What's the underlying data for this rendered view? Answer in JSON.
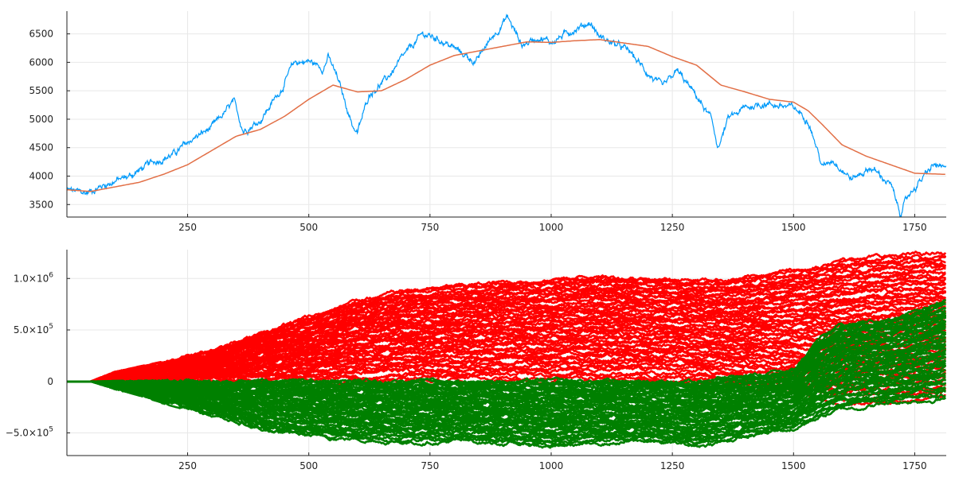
{
  "chart_data": [
    {
      "type": "line",
      "title": "",
      "xlabel": "",
      "ylabel": "",
      "grid": true,
      "legend": "none",
      "xlim": [
        1,
        1815
      ],
      "ylim": [
        3280,
        6900
      ],
      "x_ticks": [
        250,
        500,
        750,
        1000,
        1250,
        1500,
        1750
      ],
      "y_ticks": [
        3500,
        4000,
        4500,
        5000,
        5500,
        6000,
        6500
      ],
      "series": [
        {
          "color": "#009afa",
          "style": "noisy-price",
          "points": [
            [
              1,
              3760
            ],
            [
              40,
              3700
            ],
            [
              80,
              3850
            ],
            [
              130,
              4000
            ],
            [
              180,
              4250
            ],
            [
              220,
              4380
            ],
            [
              260,
              4650
            ],
            [
              300,
              4850
            ],
            [
              345,
              5300
            ],
            [
              365,
              4800
            ],
            [
              400,
              4980
            ],
            [
              445,
              5550
            ],
            [
              470,
              6000
            ],
            [
              500,
              6020
            ],
            [
              530,
              5900
            ],
            [
              540,
              6100
            ],
            [
              560,
              5700
            ],
            [
              590,
              4900
            ],
            [
              600,
              4750
            ],
            [
              625,
              5450
            ],
            [
              660,
              5700
            ],
            [
              700,
              6150
            ],
            [
              735,
              6500
            ],
            [
              770,
              6400
            ],
            [
              800,
              6250
            ],
            [
              845,
              6000
            ],
            [
              870,
              6350
            ],
            [
              910,
              6800
            ],
            [
              940,
              6300
            ],
            [
              975,
              6450
            ],
            [
              1000,
              6350
            ],
            [
              1040,
              6550
            ],
            [
              1080,
              6700
            ],
            [
              1100,
              6450
            ],
            [
              1160,
              6200
            ],
            [
              1200,
              5800
            ],
            [
              1230,
              5550
            ],
            [
              1260,
              5850
            ],
            [
              1300,
              5400
            ],
            [
              1330,
              5000
            ],
            [
              1345,
              4500
            ],
            [
              1365,
              5000
            ],
            [
              1400,
              5200
            ],
            [
              1440,
              5280
            ],
            [
              1500,
              5200
            ],
            [
              1530,
              5000
            ],
            [
              1560,
              4150
            ],
            [
              1580,
              4300
            ],
            [
              1620,
              3950
            ],
            [
              1660,
              4150
            ],
            [
              1700,
              3850
            ],
            [
              1720,
              3350
            ],
            [
              1740,
              3700
            ],
            [
              1775,
              4050
            ],
            [
              1790,
              4200
            ],
            [
              1815,
              4100
            ]
          ]
        },
        {
          "color": "#e26f46",
          "style": "moving-average",
          "points": [
            [
              1,
              3760
            ],
            [
              50,
              3730
            ],
            [
              100,
              3810
            ],
            [
              150,
              3890
            ],
            [
              200,
              4030
            ],
            [
              250,
              4200
            ],
            [
              300,
              4450
            ],
            [
              350,
              4700
            ],
            [
              400,
              4820
            ],
            [
              450,
              5050
            ],
            [
              500,
              5350
            ],
            [
              550,
              5600
            ],
            [
              600,
              5480
            ],
            [
              650,
              5500
            ],
            [
              700,
              5700
            ],
            [
              750,
              5950
            ],
            [
              800,
              6120
            ],
            [
              850,
              6200
            ],
            [
              900,
              6280
            ],
            [
              950,
              6360
            ],
            [
              1000,
              6350
            ],
            [
              1050,
              6380
            ],
            [
              1100,
              6400
            ],
            [
              1150,
              6340
            ],
            [
              1200,
              6280
            ],
            [
              1250,
              6100
            ],
            [
              1300,
              5950
            ],
            [
              1350,
              5600
            ],
            [
              1400,
              5480
            ],
            [
              1450,
              5350
            ],
            [
              1500,
              5300
            ],
            [
              1530,
              5150
            ],
            [
              1560,
              4900
            ],
            [
              1600,
              4550
            ],
            [
              1650,
              4350
            ],
            [
              1700,
              4200
            ],
            [
              1750,
              4050
            ],
            [
              1815,
              4030
            ]
          ]
        }
      ]
    },
    {
      "type": "line",
      "title": "",
      "xlabel": "",
      "ylabel": "",
      "grid": true,
      "legend": "none",
      "xlim": [
        1,
        1815
      ],
      "ylim": [
        -720000,
        1280000
      ],
      "x_ticks": [
        250,
        500,
        750,
        1000,
        1250,
        1500,
        1750
      ],
      "y_ticks": [
        {
          "value": -500000,
          "mantissa": "−5.0×10",
          "exp": "5"
        },
        {
          "value": 0,
          "mantissa": "0",
          "exp": ""
        },
        {
          "value": 500000,
          "mantissa": "5.0×10",
          "exp": "5"
        },
        {
          "value": 1000000,
          "mantissa": "1.0×10",
          "exp": "6"
        }
      ],
      "ensembles": [
        {
          "name": "positive",
          "color": "#ff0000",
          "start_x": 50,
          "envelope_upper": [
            [
              50,
              0
            ],
            [
              100,
              90000
            ],
            [
              200,
              180000
            ],
            [
              300,
              300000
            ],
            [
              400,
              470000
            ],
            [
              500,
              620000
            ],
            [
              600,
              780000
            ],
            [
              700,
              880000
            ],
            [
              800,
              920000
            ],
            [
              900,
              960000
            ],
            [
              1000,
              990000
            ],
            [
              1100,
              1020000
            ],
            [
              1200,
              1000000
            ],
            [
              1300,
              990000
            ],
            [
              1400,
              1000000
            ],
            [
              1500,
              1080000
            ],
            [
              1550,
              1120000
            ],
            [
              1600,
              1180000
            ],
            [
              1700,
              1220000
            ],
            [
              1815,
              1240000
            ]
          ],
          "envelope_lower": [
            [
              50,
              0
            ],
            [
              300,
              0
            ],
            [
              500,
              0
            ],
            [
              700,
              0
            ],
            [
              900,
              0
            ],
            [
              1100,
              0
            ],
            [
              1300,
              0
            ],
            [
              1500,
              -100000
            ],
            [
              1550,
              -150000
            ],
            [
              1600,
              -220000
            ],
            [
              1700,
              -200000
            ],
            [
              1815,
              -150000
            ]
          ]
        },
        {
          "name": "negative",
          "color": "#008000",
          "start_x": 50,
          "envelope_upper": [
            [
              50,
              0
            ],
            [
              300,
              0
            ],
            [
              500,
              0
            ],
            [
              700,
              0
            ],
            [
              900,
              0
            ],
            [
              1100,
              0
            ],
            [
              1300,
              0
            ],
            [
              1500,
              100000
            ],
            [
              1550,
              400000
            ],
            [
              1600,
              550000
            ],
            [
              1700,
              600000
            ],
            [
              1815,
              800000
            ]
          ],
          "envelope_lower": [
            [
              50,
              0
            ],
            [
              100,
              -70000
            ],
            [
              200,
              -200000
            ],
            [
              300,
              -320000
            ],
            [
              400,
              -470000
            ],
            [
              500,
              -530000
            ],
            [
              600,
              -560000
            ],
            [
              700,
              -590000
            ],
            [
              800,
              -580000
            ],
            [
              900,
              -600000
            ],
            [
              1000,
              -630000
            ],
            [
              1100,
              -600000
            ],
            [
              1200,
              -580000
            ],
            [
              1300,
              -630000
            ],
            [
              1400,
              -540000
            ],
            [
              1500,
              -460000
            ],
            [
              1550,
              -350000
            ],
            [
              1600,
              -270000
            ],
            [
              1700,
              -210000
            ],
            [
              1815,
              -160000
            ]
          ]
        }
      ]
    }
  ]
}
